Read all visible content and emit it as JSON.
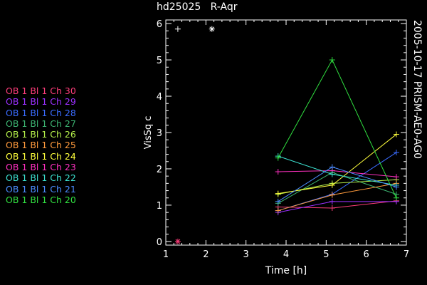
{
  "chart_data": {
    "type": "line",
    "title": "hd25025   R-Aqr",
    "side_label": "2005-10-17 PRISM-AE0-AG0",
    "xlabel": "Time [h]",
    "ylabel": "VisSq c",
    "xlim": [
      1,
      7
    ],
    "ylim": [
      -0.1,
      6.1
    ],
    "xticks": [
      "1",
      "2",
      "3",
      "4",
      "5",
      "6",
      "7"
    ],
    "yticks": [
      "0",
      "1",
      "2",
      "3",
      "4",
      "5",
      "6"
    ],
    "legend_placement": "left",
    "x": [
      3.8,
      5.15,
      6.75
    ],
    "series": [
      {
        "name": "OB 1 Bl 1 Ch 30",
        "color": "#ff3d7a",
        "values": [
          0.95,
          0.92,
          1.12
        ]
      },
      {
        "name": "OB 1 Bl 1 Ch 29",
        "color": "#9b30ff",
        "values": [
          0.8,
          1.1,
          1.1
        ]
      },
      {
        "name": "OB 1 Bl 1 Ch 28",
        "color": "#3a6cff",
        "values": [
          0.85,
          1.3,
          2.45
        ]
      },
      {
        "name": "OB 1 Bl 1 Ch 27",
        "color": "#3cb371",
        "values": [
          1.05,
          1.9,
          1.3
        ]
      },
      {
        "name": "OB 1 Bl 1 Ch 26",
        "color": "#b4ef4a",
        "values": [
          1.3,
          1.6,
          1.7
        ]
      },
      {
        "name": "OB 1 Bl 1 Ch 25",
        "color": "#ff9a3c",
        "values": [
          0.85,
          1.28,
          1.6
        ]
      },
      {
        "name": "OB 1 Bl 1 Ch 24",
        "color": "#ffff3c",
        "values": [
          1.32,
          1.55,
          2.95
        ]
      },
      {
        "name": "OB 1 Bl 1 Ch 23",
        "color": "#ff30c0",
        "values": [
          1.92,
          1.95,
          1.78
        ]
      },
      {
        "name": "OB 1 Bl 1 Ch 22",
        "color": "#3ce0d0",
        "values": [
          2.35,
          1.85,
          1.55
        ]
      },
      {
        "name": "OB 1 Bl 1 Ch 21",
        "color": "#4a8cff",
        "values": [
          1.1,
          2.05,
          1.5
        ]
      },
      {
        "name": "OB 1 Bl 1 Ch 20",
        "color": "#30e040",
        "values": [
          2.3,
          5.0,
          1.2
        ]
      }
    ],
    "extra_points": [
      {
        "x": 1.3,
        "y": 5.85,
        "marker": "+",
        "color": "#ffffff"
      },
      {
        "x": 2.15,
        "y": 5.85,
        "marker": "*",
        "color": "#ffffff"
      },
      {
        "x": 1.3,
        "y": 0.0,
        "marker": "*",
        "color": "#ff3d7a"
      }
    ]
  }
}
